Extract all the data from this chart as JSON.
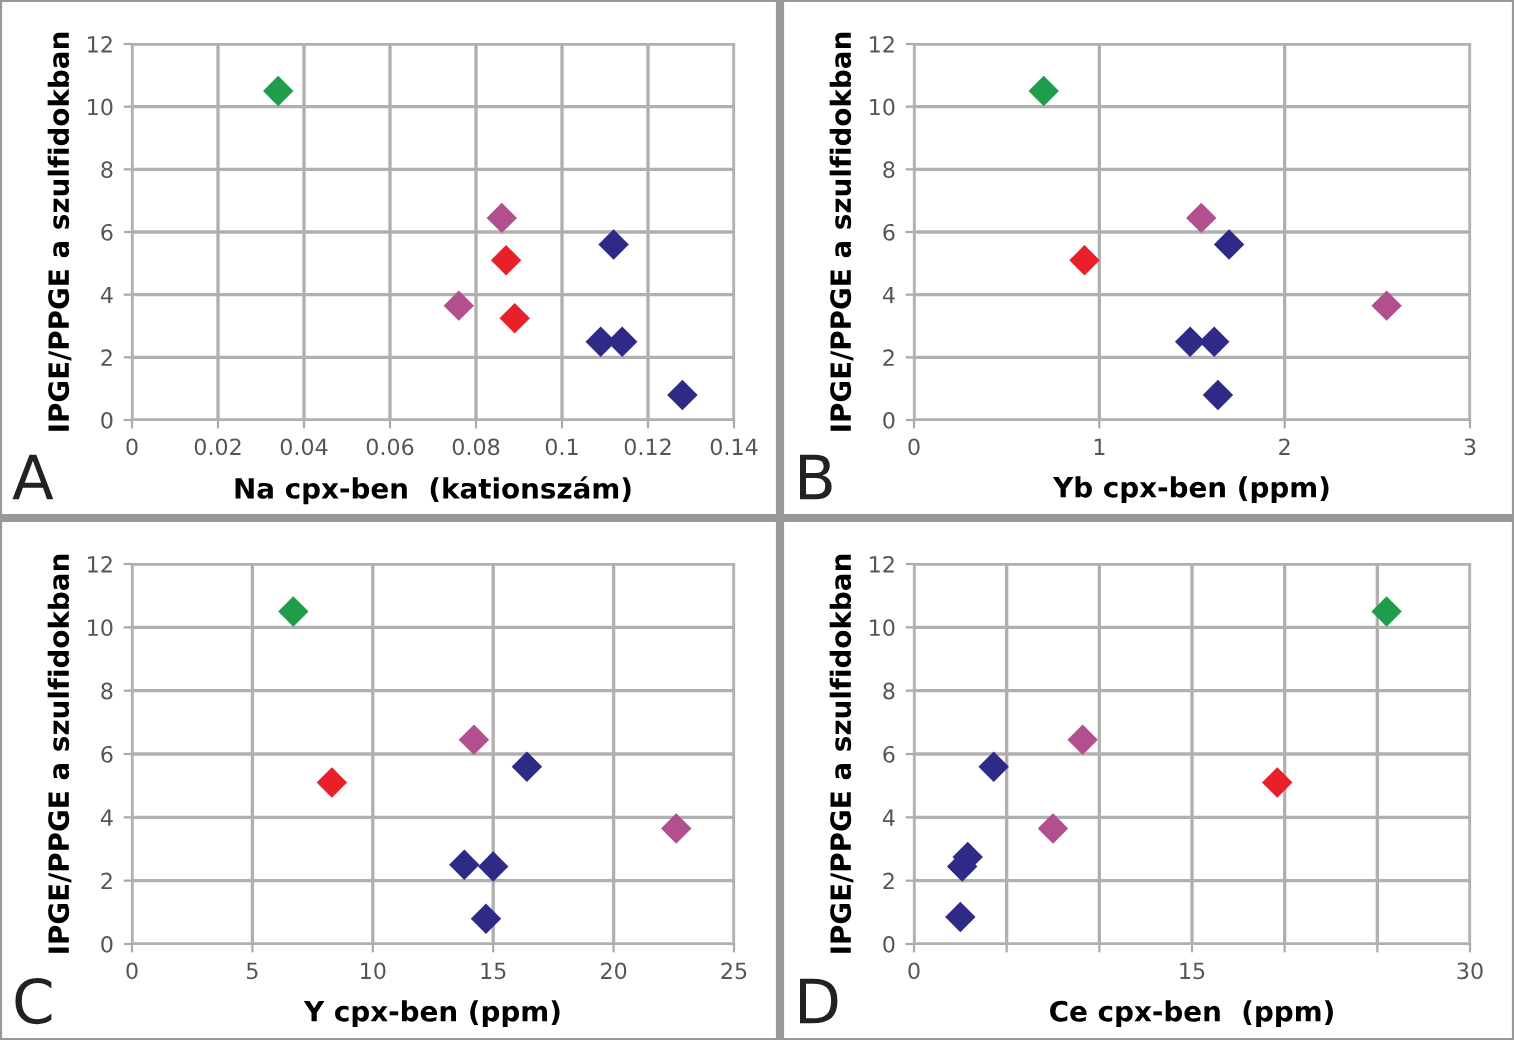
{
  "chart_data": [
    {
      "type": "scatter",
      "xlabel": "Na cpx-ben  (kationszám)",
      "ylabel": "IPGE/PPGE a szulfidokban",
      "annotations": [
        "A"
      ],
      "xlim": [
        0,
        0.14
      ],
      "xticks": [
        0,
        0.02,
        0.04,
        0.06,
        0.08,
        0.1,
        0.12,
        0.14
      ],
      "ylim": [
        0,
        12
      ],
      "yticks": [
        0,
        2,
        4,
        6,
        8,
        10,
        12
      ],
      "grid": true,
      "marker": "diamond",
      "series": [
        {
          "color": "#1e9e4a",
          "x": [
            0.034
          ],
          "values": [
            10.5
          ]
        },
        {
          "color": "#b2508f",
          "x": [
            0.086,
            0.076
          ],
          "values": [
            6.45,
            3.65
          ]
        },
        {
          "color": "#e8202a",
          "x": [
            0.087,
            0.089
          ],
          "values": [
            5.1,
            3.25
          ]
        },
        {
          "color": "#2e2a86",
          "x": [
            0.112,
            0.109,
            0.114,
            0.128
          ],
          "values": [
            5.6,
            2.5,
            2.5,
            0.8
          ]
        }
      ]
    },
    {
      "type": "scatter",
      "xlabel": "Yb cpx-ben (ppm)",
      "ylabel": "IPGE/PPGE a szulfidokban",
      "annotations": [
        "B"
      ],
      "xlim": [
        0,
        3
      ],
      "xticks": [
        0,
        1,
        2,
        3
      ],
      "ylim": [
        0,
        12
      ],
      "yticks": [
        0,
        2,
        4,
        6,
        8,
        10,
        12
      ],
      "grid": true,
      "marker": "diamond",
      "series": [
        {
          "color": "#1e9e4a",
          "x": [
            0.7
          ],
          "values": [
            10.5
          ]
        },
        {
          "color": "#b2508f",
          "x": [
            1.55,
            2.55
          ],
          "values": [
            6.45,
            3.65
          ]
        },
        {
          "color": "#e8202a",
          "x": [
            0.92
          ],
          "values": [
            5.1
          ]
        },
        {
          "color": "#2e2a86",
          "x": [
            1.7,
            1.49,
            1.62,
            1.64
          ],
          "values": [
            5.6,
            2.5,
            2.5,
            0.8
          ]
        }
      ]
    },
    {
      "type": "scatter",
      "xlabel": "Y cpx-ben (ppm)",
      "ylabel": "IPGE/PPGE a szulfidokban",
      "annotations": [
        "C"
      ],
      "xlim": [
        0,
        25
      ],
      "xticks": [
        0,
        5,
        10,
        15,
        20,
        25
      ],
      "ylim": [
        0,
        12
      ],
      "yticks": [
        0,
        2,
        4,
        6,
        8,
        10,
        12
      ],
      "grid": true,
      "marker": "diamond",
      "series": [
        {
          "color": "#1e9e4a",
          "x": [
            6.7
          ],
          "values": [
            10.5
          ]
        },
        {
          "color": "#b2508f",
          "x": [
            14.2,
            22.6
          ],
          "values": [
            6.45,
            3.65
          ]
        },
        {
          "color": "#e8202a",
          "x": [
            8.3
          ],
          "values": [
            5.1
          ]
        },
        {
          "color": "#2e2a86",
          "x": [
            16.4,
            13.8,
            15.0,
            14.7
          ],
          "values": [
            5.6,
            2.5,
            2.45,
            0.8
          ]
        }
      ]
    },
    {
      "type": "scatter",
      "xlabel": "Ce cpx-ben  (ppm)",
      "ylabel": "IPGE/PPGE a szulfidokban",
      "annotations": [
        "D"
      ],
      "xlim": [
        0,
        30
      ],
      "xticks": [
        0,
        {
          "value": 5,
          "label": null
        },
        {
          "value": 10,
          "label": null
        },
        15,
        {
          "value": 20,
          "label": null
        },
        {
          "value": 25,
          "label": null
        },
        30
      ],
      "ylim": [
        0,
        12
      ],
      "yticks": [
        0,
        2,
        4,
        6,
        8,
        10,
        12
      ],
      "grid": true,
      "marker": "diamond",
      "series": [
        {
          "color": "#1e9e4a",
          "x": [
            25.5
          ],
          "values": [
            10.5
          ]
        },
        {
          "color": "#b2508f",
          "x": [
            7.5,
            9.1
          ],
          "values": [
            3.65,
            6.45
          ]
        },
        {
          "color": "#e8202a",
          "x": [
            19.6
          ],
          "values": [
            5.1
          ]
        },
        {
          "color": "#2e2a86",
          "x": [
            2.5,
            2.6,
            2.9,
            4.3
          ],
          "values": [
            0.85,
            2.45,
            2.75,
            5.6
          ]
        }
      ]
    }
  ]
}
